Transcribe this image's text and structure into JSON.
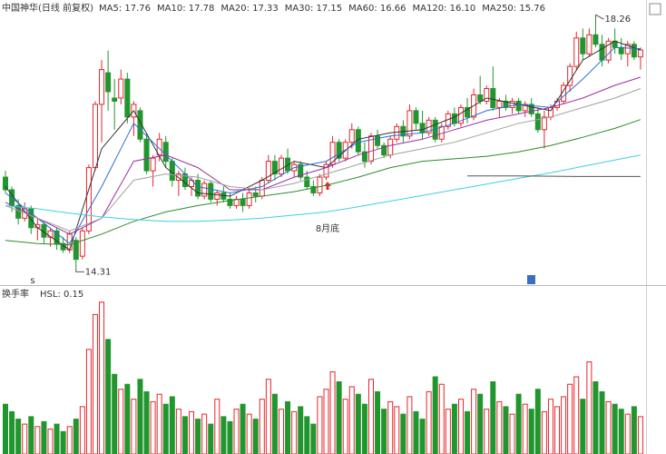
{
  "chart_data": {
    "type": "candlestick",
    "title": "中国神华(日线 前复权)",
    "ylim": [
      14.1,
      18.55
    ],
    "candles": [
      [
        15.75,
        15.85,
        15.5,
        15.55
      ],
      [
        15.55,
        15.6,
        15.2,
        15.3
      ],
      [
        15.3,
        15.4,
        15.0,
        15.1
      ],
      [
        15.1,
        15.35,
        15.05,
        15.25
      ],
      [
        15.25,
        15.3,
        14.85,
        14.95
      ],
      [
        14.95,
        15.1,
        14.75,
        15.0
      ],
      [
        15.0,
        15.05,
        14.7,
        14.8
      ],
      [
        14.8,
        14.95,
        14.65,
        14.9
      ],
      [
        14.9,
        14.95,
        14.6,
        14.7
      ],
      [
        14.7,
        14.8,
        14.55,
        14.6
      ],
      [
        14.6,
        14.9,
        14.55,
        14.85
      ],
      [
        14.75,
        14.8,
        14.31,
        14.45
      ],
      [
        14.5,
        14.95,
        14.45,
        14.9
      ],
      [
        14.9,
        15.95,
        14.85,
        15.9
      ],
      [
        15.9,
        16.95,
        15.85,
        16.9
      ],
      [
        16.9,
        17.6,
        16.3,
        17.45
      ],
      [
        17.4,
        17.75,
        16.8,
        17.1
      ],
      [
        17.0,
        17.3,
        16.5,
        16.95
      ],
      [
        17.0,
        17.45,
        16.9,
        17.3
      ],
      [
        17.3,
        17.4,
        16.6,
        16.7
      ],
      [
        16.7,
        16.95,
        16.4,
        16.9
      ],
      [
        16.8,
        16.85,
        16.3,
        16.35
      ],
      [
        16.35,
        16.45,
        15.8,
        15.85
      ],
      [
        15.85,
        16.1,
        15.6,
        16.05
      ],
      [
        16.1,
        16.45,
        16.0,
        16.35
      ],
      [
        16.3,
        16.4,
        15.9,
        16.0
      ],
      [
        16.0,
        16.05,
        15.6,
        15.7
      ],
      [
        15.7,
        15.85,
        15.45,
        15.8
      ],
      [
        15.8,
        15.9,
        15.55,
        15.6
      ],
      [
        15.6,
        15.75,
        15.45,
        15.7
      ],
      [
        15.7,
        15.8,
        15.4,
        15.45
      ],
      [
        15.45,
        15.7,
        15.4,
        15.65
      ],
      [
        15.65,
        15.7,
        15.35,
        15.4
      ],
      [
        15.4,
        15.55,
        15.3,
        15.5
      ],
      [
        15.5,
        15.6,
        15.35,
        15.4
      ],
      [
        15.4,
        15.5,
        15.25,
        15.3
      ],
      [
        15.3,
        15.45,
        15.25,
        15.4
      ],
      [
        15.4,
        15.5,
        15.2,
        15.3
      ],
      [
        15.3,
        15.55,
        15.25,
        15.5
      ],
      [
        15.5,
        15.6,
        15.35,
        15.45
      ],
      [
        15.45,
        15.75,
        15.4,
        15.7
      ],
      [
        15.7,
        16.1,
        15.65,
        16.0
      ],
      [
        16.0,
        16.1,
        15.7,
        15.8
      ],
      [
        15.8,
        16.1,
        15.75,
        16.05
      ],
      [
        16.05,
        16.2,
        15.8,
        15.85
      ],
      [
        15.85,
        16.0,
        15.75,
        15.95
      ],
      [
        15.95,
        16.0,
        15.7,
        15.75
      ],
      [
        15.75,
        15.85,
        15.55,
        15.6
      ],
      [
        15.6,
        15.7,
        15.45,
        15.5
      ],
      [
        15.5,
        15.8,
        15.45,
        15.75
      ],
      [
        15.75,
        16.0,
        15.7,
        15.95
      ],
      [
        15.95,
        16.4,
        15.9,
        16.3
      ],
      [
        16.3,
        16.35,
        16.0,
        16.05
      ],
      [
        16.05,
        16.35,
        16.0,
        16.3
      ],
      [
        16.3,
        16.6,
        16.2,
        16.5
      ],
      [
        16.5,
        16.55,
        16.1,
        16.15
      ],
      [
        16.15,
        16.3,
        15.9,
        16.0
      ],
      [
        16.0,
        16.45,
        15.95,
        16.4
      ],
      [
        16.4,
        16.5,
        16.2,
        16.25
      ],
      [
        16.25,
        16.3,
        16.05,
        16.1
      ],
      [
        16.1,
        16.4,
        16.05,
        16.35
      ],
      [
        16.35,
        16.6,
        16.3,
        16.55
      ],
      [
        16.55,
        16.65,
        16.3,
        16.4
      ],
      [
        16.4,
        16.9,
        16.35,
        16.8
      ],
      [
        16.8,
        16.85,
        16.5,
        16.6
      ],
      [
        16.6,
        16.8,
        16.35,
        16.45
      ],
      [
        16.45,
        16.7,
        16.4,
        16.65
      ],
      [
        16.65,
        16.7,
        16.3,
        16.35
      ],
      [
        16.35,
        16.6,
        16.3,
        16.55
      ],
      [
        16.55,
        16.8,
        16.5,
        16.75
      ],
      [
        16.75,
        16.85,
        16.55,
        16.6
      ],
      [
        16.6,
        16.9,
        16.55,
        16.85
      ],
      [
        16.85,
        17.0,
        16.6,
        16.7
      ],
      [
        16.7,
        17.15,
        16.65,
        17.05
      ],
      [
        17.05,
        17.35,
        16.9,
        16.95
      ],
      [
        16.95,
        17.2,
        16.9,
        17.15
      ],
      [
        17.15,
        17.5,
        16.8,
        16.85
      ],
      [
        16.85,
        17.0,
        16.7,
        16.95
      ],
      [
        16.95,
        17.05,
        16.8,
        16.85
      ],
      [
        16.85,
        17.0,
        16.75,
        16.95
      ],
      [
        16.95,
        17.0,
        16.75,
        16.8
      ],
      [
        16.8,
        16.95,
        16.7,
        16.9
      ],
      [
        16.9,
        17.0,
        16.7,
        16.75
      ],
      [
        16.75,
        16.85,
        16.45,
        16.5
      ],
      [
        16.5,
        16.8,
        16.2,
        16.7
      ],
      [
        16.7,
        16.9,
        16.65,
        16.85
      ],
      [
        16.85,
        17.0,
        16.8,
        16.95
      ],
      [
        16.95,
        17.25,
        16.9,
        17.2
      ],
      [
        17.2,
        17.55,
        17.1,
        17.5
      ],
      [
        17.5,
        18.05,
        17.45,
        17.95
      ],
      [
        17.95,
        18.1,
        17.6,
        17.7
      ],
      [
        17.7,
        18.1,
        17.65,
        18.0
      ],
      [
        18.0,
        18.26,
        17.8,
        17.85
      ],
      [
        17.85,
        18.0,
        17.5,
        17.6
      ],
      [
        17.6,
        17.95,
        17.55,
        17.9
      ],
      [
        17.9,
        18.1,
        17.7,
        17.8
      ],
      [
        17.8,
        17.95,
        17.6,
        17.7
      ],
      [
        17.7,
        17.9,
        17.5,
        17.85
      ],
      [
        17.85,
        17.9,
        17.6,
        17.65
      ],
      [
        17.65,
        17.8,
        17.45,
        17.76
      ]
    ],
    "series": [
      {
        "name": "MA5: 17.76",
        "color": "#333333",
        "x": [
          0,
          5,
          10,
          15,
          20,
          25,
          30,
          35,
          40,
          45,
          50,
          55,
          60,
          65,
          70,
          75,
          80,
          85,
          90,
          95,
          99
        ],
        "values": [
          15.6,
          14.95,
          14.6,
          16.2,
          16.8,
          15.9,
          15.5,
          15.45,
          15.7,
          16.0,
          15.9,
          16.35,
          16.45,
          16.5,
          16.7,
          17.0,
          16.9,
          16.8,
          17.6,
          17.9,
          17.76
        ]
      },
      {
        "name": "MA10: 17.78",
        "color": "#2a6fd6",
        "x": [
          0,
          5,
          10,
          15,
          20,
          25,
          30,
          35,
          40,
          45,
          50,
          55,
          60,
          65,
          70,
          75,
          80,
          85,
          90,
          95,
          99
        ],
        "values": [
          15.5,
          15.1,
          14.7,
          15.6,
          16.6,
          16.1,
          15.6,
          15.5,
          15.6,
          15.9,
          16.0,
          16.3,
          16.4,
          16.45,
          16.6,
          16.8,
          16.9,
          16.85,
          17.3,
          17.8,
          17.78
        ]
      },
      {
        "name": "MA20: 17.33",
        "color": "#9b2fa0",
        "x": [
          0,
          5,
          10,
          15,
          20,
          25,
          30,
          35,
          40,
          45,
          50,
          55,
          60,
          65,
          70,
          75,
          80,
          85,
          90,
          95,
          99
        ],
        "values": [
          15.35,
          15.1,
          14.85,
          15.1,
          16.0,
          16.1,
          15.9,
          15.55,
          15.55,
          15.75,
          15.9,
          16.1,
          16.25,
          16.35,
          16.5,
          16.65,
          16.75,
          16.85,
          17.0,
          17.2,
          17.33
        ]
      },
      {
        "name": "MA30: 17.15",
        "color": "#a0a0a0",
        "x": [
          0,
          5,
          10,
          15,
          20,
          25,
          30,
          35,
          40,
          45,
          50,
          55,
          60,
          65,
          70,
          75,
          80,
          85,
          90,
          95,
          99
        ],
        "values": [
          15.3,
          15.1,
          14.9,
          15.1,
          15.7,
          15.8,
          15.75,
          15.6,
          15.55,
          15.65,
          15.8,
          15.95,
          16.1,
          16.2,
          16.3,
          16.45,
          16.6,
          16.7,
          16.85,
          17.0,
          17.15
        ]
      },
      {
        "name": "MA60: 16.66",
        "color": "#2e8b2e",
        "x": [
          0,
          5,
          10,
          15,
          20,
          25,
          30,
          35,
          40,
          45,
          50,
          55,
          60,
          65,
          70,
          75,
          80,
          85,
          90,
          95,
          99
        ],
        "values": [
          14.75,
          14.7,
          14.68,
          14.85,
          15.05,
          15.2,
          15.3,
          15.38,
          15.45,
          15.52,
          15.62,
          15.75,
          15.9,
          16.0,
          16.04,
          16.08,
          16.15,
          16.25,
          16.38,
          16.52,
          16.66
        ]
      },
      {
        "name": "MA120: 16.10",
        "color": "#3fd0e0",
        "x": [
          0,
          5,
          10,
          15,
          20,
          25,
          30,
          35,
          40,
          45,
          50,
          55,
          60,
          65,
          70,
          75,
          80,
          85,
          90,
          95,
          99
        ],
        "values": [
          15.3,
          15.25,
          15.18,
          15.12,
          15.08,
          15.05,
          15.05,
          15.07,
          15.1,
          15.15,
          15.2,
          15.28,
          15.37,
          15.46,
          15.55,
          15.64,
          15.73,
          15.82,
          15.92,
          16.02,
          16.1
        ]
      },
      {
        "name": "MA250: 15.76",
        "color": "#555555",
        "x": [
          72,
          80,
          90,
          99
        ],
        "values": [
          15.77,
          15.77,
          15.76,
          15.76
        ]
      }
    ],
    "high_label": 18.26,
    "low_label": 14.31,
    "note": "8月底",
    "volume": {
      "title": "换手率",
      "label": "HSL: 0.15",
      "ylim": [
        0,
        0.62
      ],
      "values": [
        0.2,
        0.17,
        0.14,
        0.12,
        0.15,
        0.11,
        0.13,
        0.1,
        0.12,
        0.09,
        0.11,
        0.14,
        0.19,
        0.42,
        0.56,
        0.61,
        0.46,
        0.32,
        0.26,
        0.28,
        0.22,
        0.3,
        0.25,
        0.21,
        0.24,
        0.2,
        0.23,
        0.18,
        0.15,
        0.17,
        0.14,
        0.16,
        0.12,
        0.22,
        0.15,
        0.13,
        0.18,
        0.2,
        0.16,
        0.14,
        0.22,
        0.3,
        0.24,
        0.18,
        0.21,
        0.17,
        0.19,
        0.15,
        0.12,
        0.23,
        0.26,
        0.33,
        0.29,
        0.22,
        0.27,
        0.24,
        0.2,
        0.3,
        0.25,
        0.18,
        0.21,
        0.19,
        0.16,
        0.23,
        0.17,
        0.14,
        0.25,
        0.31,
        0.28,
        0.18,
        0.2,
        0.22,
        0.17,
        0.26,
        0.24,
        0.18,
        0.29,
        0.21,
        0.19,
        0.16,
        0.24,
        0.2,
        0.18,
        0.26,
        0.17,
        0.22,
        0.19,
        0.23,
        0.28,
        0.31,
        0.22,
        0.37,
        0.29,
        0.25,
        0.21,
        0.2,
        0.18,
        0.16,
        0.19,
        0.15
      ]
    },
    "up_color": "#e8242b",
    "down_color": "#21962f"
  }
}
